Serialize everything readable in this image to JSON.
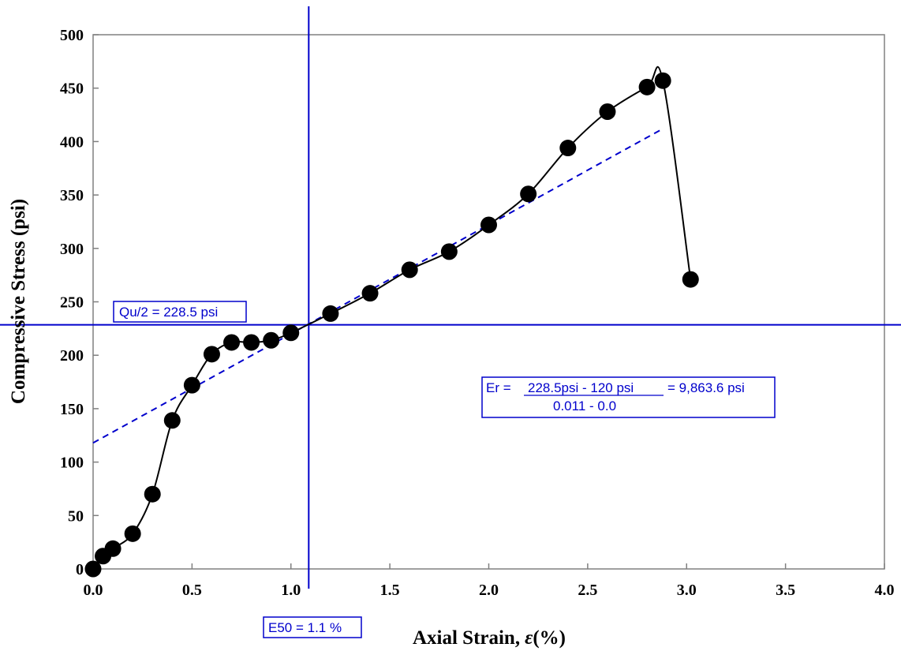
{
  "chart_data": {
    "type": "scatter",
    "xlabel_prefix": "Axial Strain,",
    "xlabel_symbol": "ε",
    "xlabel_suffix": "(%)",
    "ylabel": "Compressive Stress (psi)",
    "xlim": [
      0,
      4.0
    ],
    "ylim": [
      0,
      500
    ],
    "xticks": [
      "0.0",
      "0.5",
      "1.0",
      "1.5",
      "2.0",
      "2.5",
      "3.0",
      "3.5",
      "4.0"
    ],
    "yticks": [
      "0",
      "50",
      "100",
      "150",
      "200",
      "250",
      "300",
      "350",
      "400",
      "450",
      "500"
    ],
    "grid": false,
    "series": [
      {
        "style": "black filled circles joined by smooth curve",
        "x": [
          0.0,
          0.05,
          0.1,
          0.2,
          0.3,
          0.4,
          0.5,
          0.6,
          0.7,
          0.8,
          0.9,
          1.0,
          1.2,
          1.4,
          1.6,
          1.8,
          2.0,
          2.2,
          2.4,
          2.6,
          2.8,
          2.88,
          3.02
        ],
        "y": [
          0,
          12,
          19,
          33,
          70,
          139,
          172,
          201,
          212,
          212,
          214,
          221,
          239,
          258,
          280,
          297,
          322,
          351,
          394,
          428,
          451,
          457,
          271
        ],
        "color": "#000000"
      }
    ],
    "trend_line": {
      "x": [
        0.0,
        2.88
      ],
      "y": [
        118,
        412
      ],
      "color": "#0000cc",
      "style": "dashed"
    },
    "reference_lines": {
      "horizontal_y": 228.5,
      "vertical_x": 1.09,
      "color": "#0000cc"
    },
    "annotations": {
      "qu_half": "Qu/2 = 228.5 psi",
      "e50": "E50 = 1.1 %",
      "er_prefix": "Er =",
      "er_numerator": "228.5psi - 120 psi",
      "er_result": "= 9,863.6 psi",
      "er_denominator": "0.011 - 0.0"
    }
  }
}
